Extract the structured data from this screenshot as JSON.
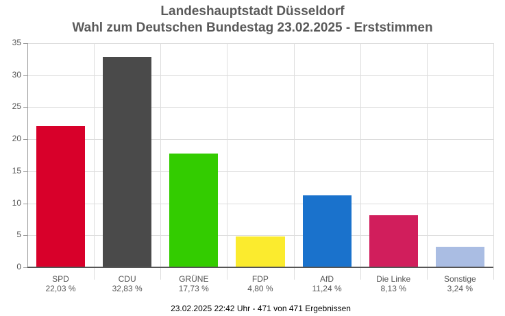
{
  "header": {
    "title_line1": "Landeshauptstadt Düsseldorf",
    "title_line2": "Wahl zum Deutschen Bundestag 23.02.2025  - Erststimmen"
  },
  "footer": {
    "status": "23.02.2025 22:42 Uhr - 471 von 471 Ergebnissen"
  },
  "y_ticks": [
    "0",
    "5",
    "10",
    "15",
    "20",
    "25",
    "30",
    "35"
  ],
  "bars": [
    {
      "party": "SPD",
      "label": "22,03 %",
      "value": 22.03,
      "color": "#d8002a"
    },
    {
      "party": "CDU",
      "label": "32,83 %",
      "value": 32.83,
      "color": "#4a4a4a"
    },
    {
      "party": "GRÜNE",
      "label": "17,73 %",
      "value": 17.73,
      "color": "#33cc00"
    },
    {
      "party": "FDP",
      "label": "4,80 %",
      "value": 4.8,
      "color": "#fbeb2e"
    },
    {
      "party": "AfD",
      "label": "11,24 %",
      "value": 11.24,
      "color": "#1a72cc"
    },
    {
      "party": "Die Linke",
      "label": "8,13 %",
      "value": 8.13,
      "color": "#d11e5c"
    },
    {
      "party": "Sonstige",
      "label": "3,24 %",
      "value": 3.24,
      "color": "#aabde3"
    }
  ],
  "chart_data": {
    "type": "bar",
    "title": "Landeshauptstadt Düsseldorf - Wahl zum Deutschen Bundestag 23.02.2025 - Erststimmen",
    "categories": [
      "SPD",
      "CDU",
      "GRÜNE",
      "FDP",
      "AfD",
      "Die Linke",
      "Sonstige"
    ],
    "values": [
      22.03,
      32.83,
      17.73,
      4.8,
      11.24,
      8.13,
      3.24
    ],
    "value_labels": [
      "22,03 %",
      "32,83 %",
      "17,73 %",
      "4,80 %",
      "11,24 %",
      "8,13 %",
      "3,24 %"
    ],
    "colors": [
      "#d8002a",
      "#4a4a4a",
      "#33cc00",
      "#fbeb2e",
      "#1a72cc",
      "#d11e5c",
      "#aabde3"
    ],
    "xlabel": "",
    "ylabel": "",
    "ylim": [
      0,
      35
    ],
    "yticks": [
      0,
      5,
      10,
      15,
      20,
      25,
      30,
      35
    ],
    "grid": true,
    "legend": "none",
    "footnote": "23.02.2025 22:42 Uhr - 471 von 471 Ergebnissen"
  }
}
